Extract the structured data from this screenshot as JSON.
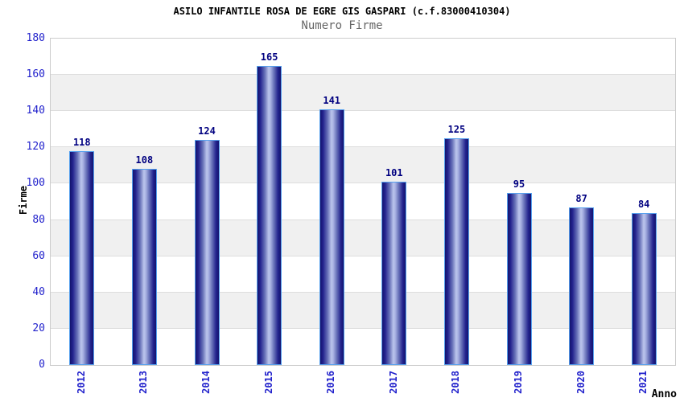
{
  "header": {
    "title": "ASILO INFANTILE ROSA DE EGRE GIS GASPARI (c.f.83000410304)",
    "subtitle": "Numero Firme"
  },
  "chart_data": {
    "type": "bar",
    "title": "ASILO INFANTILE ROSA DE EGRE GIS GASPARI (c.f.83000410304)",
    "subtitle": "Numero Firme",
    "categories": [
      "2012",
      "2013",
      "2014",
      "2015",
      "2016",
      "2017",
      "2018",
      "2019",
      "2020",
      "2021"
    ],
    "values": [
      118,
      108,
      124,
      165,
      141,
      101,
      125,
      95,
      87,
      84
    ],
    "xlabel": "Anno",
    "ylabel": "Firme",
    "ylim": [
      0,
      180
    ],
    "yticks": [
      0,
      20,
      40,
      60,
      80,
      100,
      120,
      140,
      160,
      180
    ],
    "grid": true,
    "legend_position": "none",
    "band_pattern": "alternating-white-gray",
    "colors": {
      "axis_tick_label": "#2222cc",
      "value_label": "#000080",
      "band_gray": "#f0f0f0",
      "gridline": "#dddddd",
      "plot_border": "#cccccc",
      "bar_border": "#55a0ee",
      "bar_dark": "#14146e",
      "bar_mid": "#6a74ba",
      "bar_light": "#bcc5ec",
      "subtitle": "#666666",
      "title": "#000000"
    }
  }
}
